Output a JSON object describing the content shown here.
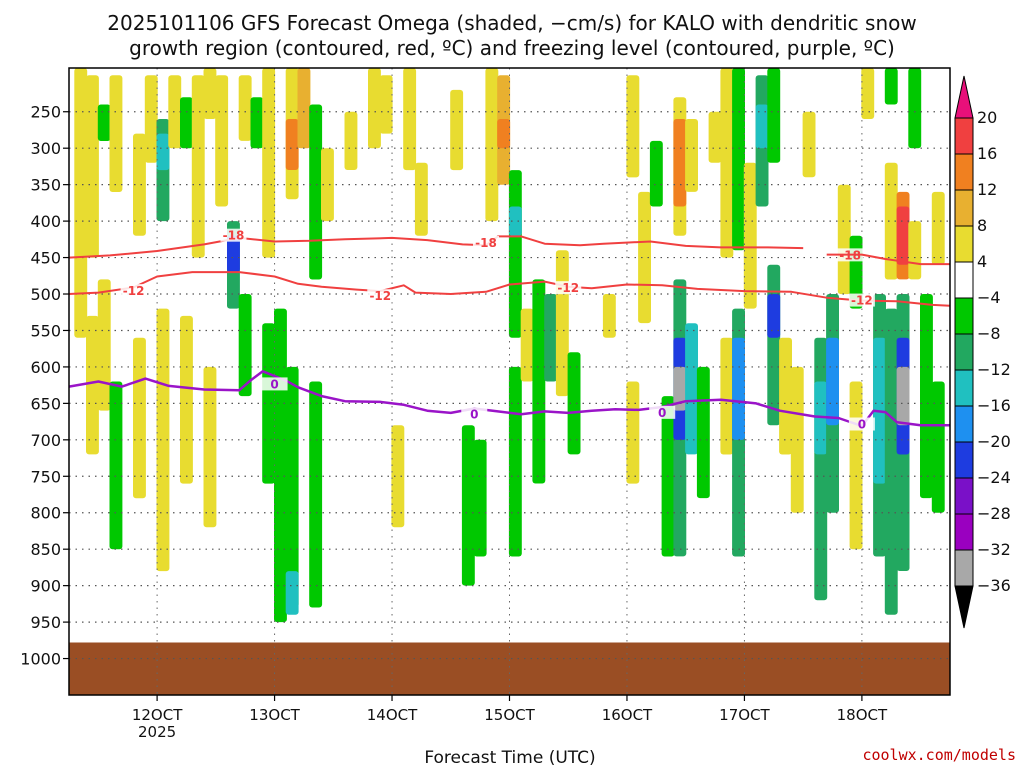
{
  "chart_data": {
    "type": "heatmap",
    "title_line1": "2025101106 GFS Forecast Omega (shaded, −cm/s) for KALO with dendritic snow",
    "title_line2": "growth region (contoured, red, ºC) and freezing level (contoured, purple, ºC)",
    "xlabel": "Forecast Time (UTC)",
    "ylabel": "",
    "credit": "coolwx.com/models",
    "xlim": [
      112.5,
      187.5
    ],
    "ylim": [
      1050,
      190
    ],
    "x_ticks": [
      {
        "value": 120,
        "label": "12OCT",
        "sub": "2025"
      },
      {
        "value": 130,
        "label": "13OCT",
        "sub": ""
      },
      {
        "value": 140,
        "label": "14OCT",
        "sub": ""
      },
      {
        "value": 150,
        "label": "15OCT",
        "sub": ""
      },
      {
        "value": 160,
        "label": "16OCT",
        "sub": ""
      },
      {
        "value": 170,
        "label": "17OCT",
        "sub": ""
      },
      {
        "value": 180,
        "label": "18OCT",
        "sub": ""
      }
    ],
    "y_ticks": [
      {
        "value": 250,
        "label": "250"
      },
      {
        "value": 300,
        "label": "300"
      },
      {
        "value": 350,
        "label": "350"
      },
      {
        "value": 400,
        "label": "400"
      },
      {
        "value": 450,
        "label": "450"
      },
      {
        "value": 500,
        "label": "500"
      },
      {
        "value": 550,
        "label": "550"
      },
      {
        "value": 600,
        "label": "600"
      },
      {
        "value": 650,
        "label": "650"
      },
      {
        "value": 700,
        "label": "700"
      },
      {
        "value": 750,
        "label": "750"
      },
      {
        "value": 800,
        "label": "800"
      },
      {
        "value": 850,
        "label": "850"
      },
      {
        "value": 900,
        "label": "900"
      },
      {
        "value": 950,
        "label": "950"
      },
      {
        "value": 1000,
        "label": "1000"
      }
    ],
    "ground_level_hpa": 978,
    "colorbar": {
      "labels": [
        "20",
        "16",
        "12",
        "8",
        "4",
        "−4",
        "−8",
        "−12",
        "−16",
        "−20",
        "−24",
        "−28",
        "−32",
        "−36"
      ],
      "colors": [
        "#e8107a",
        "#f04040",
        "#f08020",
        "#e8b030",
        "#e8dc30",
        "#ffffff",
        "#00c800",
        "#22a860",
        "#20c0c0",
        "#1e90f0",
        "#1e3ce0",
        "#7a10c8",
        "#9a00c0",
        "#a8a8a8",
        "#000000"
      ]
    },
    "omega_cells": [
      {
        "t": 113.5,
        "p0": 190,
        "p1": 560,
        "v": 5
      },
      {
        "t": 114.5,
        "p0": 200,
        "p1": 450,
        "v": 5
      },
      {
        "t": 114.5,
        "p0": 530,
        "p1": 720,
        "v": 5
      },
      {
        "t": 115.5,
        "p0": 480,
        "p1": 660,
        "v": 5
      },
      {
        "t": 115.5,
        "p0": 240,
        "p1": 290,
        "v": -6
      },
      {
        "t": 116.5,
        "p0": 200,
        "p1": 360,
        "v": 5
      },
      {
        "t": 116.5,
        "p0": 620,
        "p1": 850,
        "v": -6
      },
      {
        "t": 118.5,
        "p0": 280,
        "p1": 420,
        "v": 5
      },
      {
        "t": 118.5,
        "p0": 560,
        "p1": 780,
        "v": 5
      },
      {
        "t": 119.5,
        "p0": 200,
        "p1": 320,
        "v": 5
      },
      {
        "t": 120.5,
        "p0": 260,
        "p1": 400,
        "v": -10
      },
      {
        "t": 120.5,
        "p0": 280,
        "p1": 330,
        "v": -14
      },
      {
        "t": 120.5,
        "p0": 520,
        "p1": 880,
        "v": 5
      },
      {
        "t": 121.5,
        "p0": 200,
        "p1": 300,
        "v": 5
      },
      {
        "t": 122.5,
        "p0": 230,
        "p1": 300,
        "v": -6
      },
      {
        "t": 122.5,
        "p0": 530,
        "p1": 760,
        "v": 5
      },
      {
        "t": 123.5,
        "p0": 200,
        "p1": 450,
        "v": 5
      },
      {
        "t": 124.5,
        "p0": 190,
        "p1": 260,
        "v": 5
      },
      {
        "t": 124.5,
        "p0": 600,
        "p1": 820,
        "v": 5
      },
      {
        "t": 125.5,
        "p0": 200,
        "p1": 380,
        "v": 5
      },
      {
        "t": 126.5,
        "p0": 400,
        "p1": 520,
        "v": -10
      },
      {
        "t": 126.5,
        "p0": 420,
        "p1": 470,
        "v": -22
      },
      {
        "t": 127.5,
        "p0": 500,
        "p1": 640,
        "v": -6
      },
      {
        "t": 127.5,
        "p0": 200,
        "p1": 290,
        "v": 5
      },
      {
        "t": 128.5,
        "p0": 230,
        "p1": 300,
        "v": -6
      },
      {
        "t": 129.5,
        "p0": 540,
        "p1": 760,
        "v": -6
      },
      {
        "t": 129.5,
        "p0": 190,
        "p1": 450,
        "v": 5
      },
      {
        "t": 130.5,
        "p0": 520,
        "p1": 950,
        "v": -6
      },
      {
        "t": 131.5,
        "p0": 190,
        "p1": 370,
        "v": 6
      },
      {
        "t": 131.5,
        "p0": 260,
        "p1": 330,
        "v": 13
      },
      {
        "t": 131.5,
        "p0": 600,
        "p1": 930,
        "v": -6
      },
      {
        "t": 131.5,
        "p0": 880,
        "p1": 940,
        "v": -14
      },
      {
        "t": 132.5,
        "p0": 190,
        "p1": 300,
        "v": 10
      },
      {
        "t": 133.5,
        "p0": 240,
        "p1": 480,
        "v": -6
      },
      {
        "t": 133.5,
        "p0": 620,
        "p1": 930,
        "v": -6
      },
      {
        "t": 134.5,
        "p0": 300,
        "p1": 400,
        "v": 5
      },
      {
        "t": 136.5,
        "p0": 250,
        "p1": 330,
        "v": 5
      },
      {
        "t": 138.5,
        "p0": 190,
        "p1": 300,
        "v": 5
      },
      {
        "t": 139.5,
        "p0": 200,
        "p1": 280,
        "v": 5
      },
      {
        "t": 140.5,
        "p0": 680,
        "p1": 820,
        "v": 5
      },
      {
        "t": 141.5,
        "p0": 190,
        "p1": 330,
        "v": 5
      },
      {
        "t": 142.5,
        "p0": 320,
        "p1": 420,
        "v": 5
      },
      {
        "t": 145.5,
        "p0": 220,
        "p1": 330,
        "v": 5
      },
      {
        "t": 146.5,
        "p0": 680,
        "p1": 900,
        "v": -6
      },
      {
        "t": 147.5,
        "p0": 700,
        "p1": 860,
        "v": -6
      },
      {
        "t": 148.5,
        "p0": 190,
        "p1": 400,
        "v": 6
      },
      {
        "t": 149.5,
        "p0": 200,
        "p1": 350,
        "v": 8
      },
      {
        "t": 149.5,
        "p0": 260,
        "p1": 300,
        "v": 14
      },
      {
        "t": 150.5,
        "p0": 330,
        "p1": 560,
        "v": -6
      },
      {
        "t": 150.5,
        "p0": 380,
        "p1": 420,
        "v": -14
      },
      {
        "t": 150.5,
        "p0": 600,
        "p1": 860,
        "v": -6
      },
      {
        "t": 151.5,
        "p0": 520,
        "p1": 620,
        "v": 5
      },
      {
        "t": 152.5,
        "p0": 480,
        "p1": 760,
        "v": -6
      },
      {
        "t": 153.5,
        "p0": 500,
        "p1": 620,
        "v": -10
      },
      {
        "t": 154.5,
        "p0": 440,
        "p1": 640,
        "v": 5
      },
      {
        "t": 155.5,
        "p0": 580,
        "p1": 720,
        "v": -6
      },
      {
        "t": 158.5,
        "p0": 500,
        "p1": 560,
        "v": 5
      },
      {
        "t": 160.5,
        "p0": 200,
        "p1": 340,
        "v": 5
      },
      {
        "t": 160.5,
        "p0": 620,
        "p1": 760,
        "v": 5
      },
      {
        "t": 161.5,
        "p0": 360,
        "p1": 540,
        "v": 5
      },
      {
        "t": 162.5,
        "p0": 290,
        "p1": 380,
        "v": -6
      },
      {
        "t": 163.5,
        "p0": 640,
        "p1": 860,
        "v": -6
      },
      {
        "t": 164.5,
        "p0": 230,
        "p1": 420,
        "v": 6
      },
      {
        "t": 164.5,
        "p0": 260,
        "p1": 380,
        "v": 12
      },
      {
        "t": 164.5,
        "p0": 480,
        "p1": 860,
        "v": -8
      },
      {
        "t": 164.5,
        "p0": 560,
        "p1": 700,
        "v": -22
      },
      {
        "t": 164.5,
        "p0": 600,
        "p1": 660,
        "v": -33
      },
      {
        "t": 165.5,
        "p0": 260,
        "p1": 360,
        "v": 6
      },
      {
        "t": 165.5,
        "p0": 540,
        "p1": 720,
        "v": -12
      },
      {
        "t": 166.5,
        "p0": 600,
        "p1": 780,
        "v": -6
      },
      {
        "t": 167.5,
        "p0": 250,
        "p1": 320,
        "v": 5
      },
      {
        "t": 168.5,
        "p0": 190,
        "p1": 450,
        "v": 5
      },
      {
        "t": 168.5,
        "p0": 560,
        "p1": 720,
        "v": 5
      },
      {
        "t": 169.5,
        "p0": 190,
        "p1": 440,
        "v": -6
      },
      {
        "t": 169.5,
        "p0": 520,
        "p1": 860,
        "v": -8
      },
      {
        "t": 169.5,
        "p0": 560,
        "p1": 700,
        "v": -18
      },
      {
        "t": 170.5,
        "p0": 320,
        "p1": 520,
        "v": 5
      },
      {
        "t": 171.5,
        "p0": 200,
        "p1": 380,
        "v": -8
      },
      {
        "t": 171.5,
        "p0": 240,
        "p1": 300,
        "v": -14
      },
      {
        "t": 172.5,
        "p0": 190,
        "p1": 320,
        "v": -6
      },
      {
        "t": 172.5,
        "p0": 460,
        "p1": 680,
        "v": -10
      },
      {
        "t": 172.5,
        "p0": 500,
        "p1": 560,
        "v": -22
      },
      {
        "t": 173.5,
        "p0": 560,
        "p1": 720,
        "v": 5
      },
      {
        "t": 174.5,
        "p0": 600,
        "p1": 800,
        "v": 5
      },
      {
        "t": 175.5,
        "p0": 250,
        "p1": 340,
        "v": 5
      },
      {
        "t": 176.5,
        "p0": 560,
        "p1": 920,
        "v": -8
      },
      {
        "t": 176.5,
        "p0": 620,
        "p1": 720,
        "v": -14
      },
      {
        "t": 177.5,
        "p0": 500,
        "p1": 800,
        "v": -10
      },
      {
        "t": 177.5,
        "p0": 560,
        "p1": 680,
        "v": -18
      },
      {
        "t": 178.5,
        "p0": 350,
        "p1": 500,
        "v": 5
      },
      {
        "t": 179.5,
        "p0": 420,
        "p1": 520,
        "v": -6
      },
      {
        "t": 179.5,
        "p0": 620,
        "p1": 850,
        "v": 5
      },
      {
        "t": 180.5,
        "p0": 190,
        "p1": 260,
        "v": 5
      },
      {
        "t": 181.5,
        "p0": 500,
        "p1": 860,
        "v": -8
      },
      {
        "t": 181.5,
        "p0": 560,
        "p1": 760,
        "v": -14
      },
      {
        "t": 182.5,
        "p0": 190,
        "p1": 240,
        "v": -6
      },
      {
        "t": 182.5,
        "p0": 320,
        "p1": 480,
        "v": 6
      },
      {
        "t": 182.5,
        "p0": 520,
        "p1": 940,
        "v": -8
      },
      {
        "t": 183.5,
        "p0": 360,
        "p1": 480,
        "v": 12
      },
      {
        "t": 183.5,
        "p0": 380,
        "p1": 460,
        "v": 18
      },
      {
        "t": 183.5,
        "p0": 500,
        "p1": 880,
        "v": -10
      },
      {
        "t": 183.5,
        "p0": 560,
        "p1": 720,
        "v": -22
      },
      {
        "t": 183.5,
        "p0": 600,
        "p1": 680,
        "v": -34
      },
      {
        "t": 184.5,
        "p0": 190,
        "p1": 300,
        "v": -6
      },
      {
        "t": 184.5,
        "p0": 400,
        "p1": 480,
        "v": 6
      },
      {
        "t": 185.5,
        "p0": 500,
        "p1": 780,
        "v": -6
      },
      {
        "t": 186.5,
        "p0": 360,
        "p1": 460,
        "v": 6
      },
      {
        "t": 186.5,
        "p0": 620,
        "p1": 800,
        "v": -6
      }
    ],
    "contours": [
      {
        "name": "minus-18",
        "label": "-18",
        "color": "#f04040",
        "width": 2,
        "points": [
          [
            112.5,
            450
          ],
          [
            116,
            447
          ],
          [
            120,
            441
          ],
          [
            124,
            432
          ],
          [
            127,
            423
          ],
          [
            130,
            428
          ],
          [
            133,
            427
          ],
          [
            136,
            425
          ],
          [
            140,
            423
          ],
          [
            143,
            426
          ],
          [
            146,
            432
          ],
          [
            148,
            433
          ],
          [
            149,
            421
          ],
          [
            151,
            421
          ],
          [
            153,
            431
          ],
          [
            156,
            433
          ],
          [
            158,
            431
          ],
          [
            162,
            428
          ],
          [
            165,
            434
          ],
          [
            168,
            436
          ],
          [
            172,
            436
          ],
          [
            175,
            437
          ]
        ],
        "label_at": [
          [
            126.5,
            420
          ],
          [
            148,
            430
          ],
          [
            179,
            447
          ]
        ]
      },
      {
        "name": "minus-18b",
        "label": "",
        "color": "#f04040",
        "width": 2,
        "points": [
          [
            177,
            446
          ],
          [
            180,
            446
          ],
          [
            182,
            452
          ],
          [
            185,
            459
          ],
          [
            187.5,
            459
          ]
        ],
        "label_at": []
      },
      {
        "name": "minus-12",
        "label": "-12",
        "color": "#f04040",
        "width": 2,
        "points": [
          [
            112.5,
            500
          ],
          [
            115,
            498
          ],
          [
            118,
            491
          ],
          [
            120,
            476
          ],
          [
            123,
            470
          ],
          [
            127,
            470
          ],
          [
            130,
            476
          ],
          [
            132,
            486
          ],
          [
            134,
            490
          ],
          [
            137,
            494
          ],
          [
            139,
            496
          ],
          [
            141,
            488
          ],
          [
            142,
            498
          ],
          [
            145,
            500
          ],
          [
            148,
            497
          ],
          [
            150,
            487
          ],
          [
            153,
            483
          ],
          [
            155,
            490
          ],
          [
            157,
            492
          ],
          [
            160,
            487
          ],
          [
            163,
            488
          ],
          [
            166,
            493
          ],
          [
            170,
            496
          ],
          [
            174,
            497
          ],
          [
            177,
            505
          ],
          [
            180,
            509
          ],
          [
            183,
            510
          ],
          [
            186,
            515
          ],
          [
            187.5,
            516
          ]
        ],
        "label_at": [
          [
            118,
            496
          ],
          [
            139,
            503
          ],
          [
            155,
            492
          ],
          [
            180,
            509
          ]
        ]
      },
      {
        "name": "freezing-0",
        "label": "0",
        "color": "#9a14c8",
        "width": 2.5,
        "points": [
          [
            112.5,
            627
          ],
          [
            115,
            620
          ],
          [
            117,
            627
          ],
          [
            119,
            616
          ],
          [
            121,
            626
          ],
          [
            124,
            631
          ],
          [
            127,
            632
          ],
          [
            128,
            618
          ],
          [
            129,
            606
          ],
          [
            131,
            619
          ],
          [
            132,
            628
          ],
          [
            134,
            640
          ],
          [
            136,
            647
          ],
          [
            139,
            648
          ],
          [
            141,
            652
          ],
          [
            143,
            660
          ],
          [
            145,
            663
          ],
          [
            147,
            657
          ],
          [
            149,
            661
          ],
          [
            151,
            665
          ],
          [
            153,
            661
          ],
          [
            155,
            663
          ],
          [
            157,
            660
          ],
          [
            159,
            658
          ],
          [
            161,
            659
          ],
          [
            163,
            655
          ],
          [
            165,
            647
          ],
          [
            168,
            645
          ],
          [
            171,
            650
          ],
          [
            173,
            660
          ],
          [
            176,
            668
          ],
          [
            178,
            670
          ],
          [
            180,
            681
          ],
          [
            181,
            660
          ],
          [
            182,
            662
          ],
          [
            183,
            676
          ],
          [
            185,
            680
          ],
          [
            187.5,
            680
          ]
        ],
        "label_at": [
          [
            130,
            624
          ],
          [
            147,
            665
          ],
          [
            163,
            663
          ],
          [
            180,
            679
          ]
        ]
      }
    ]
  }
}
